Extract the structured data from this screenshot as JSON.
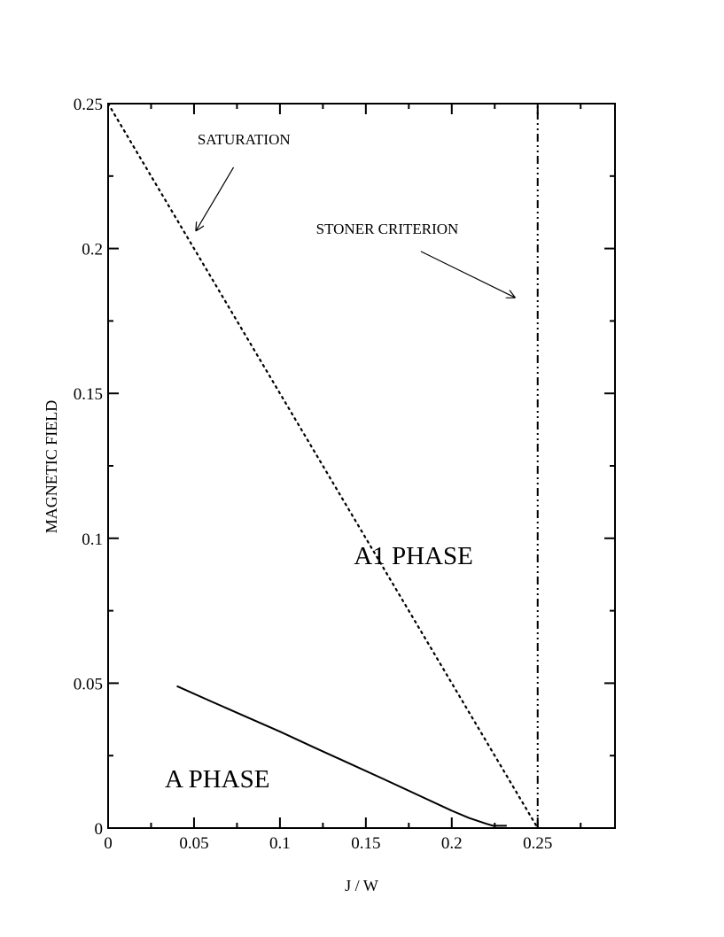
{
  "chart_data": {
    "type": "line",
    "xlabel": "J / W",
    "ylabel": "MAGNETIC FIELD",
    "xlim": [
      0,
      0.295
    ],
    "ylim": [
      0,
      0.25
    ],
    "x_ticks": [
      0,
      0.05,
      0.1,
      0.15,
      0.2,
      0.25
    ],
    "x_tick_labels": [
      "0",
      "0.05",
      "0.1",
      "0.15",
      "0.2",
      "0.25"
    ],
    "y_ticks": [
      0,
      0.05,
      0.1,
      0.15,
      0.2,
      0.25
    ],
    "y_tick_labels": [
      "0",
      "0.05",
      "0.1",
      "0.15",
      "0.2",
      "0.25"
    ],
    "grid": false,
    "series": [
      {
        "style": "dotted",
        "x": [
          0,
          0.25
        ],
        "y": [
          0.25,
          0
        ]
      },
      {
        "style": "dash-dot",
        "x": [
          0.25,
          0.25
        ],
        "y": [
          0,
          0.25
        ]
      },
      {
        "style": "solid",
        "x": [
          0.04,
          0.06,
          0.08,
          0.1,
          0.12,
          0.14,
          0.16,
          0.18,
          0.2,
          0.21,
          0.22,
          0.224,
          0.226,
          0.232
        ],
        "y": [
          0.049,
          0.0437,
          0.0385,
          0.0333,
          0.0278,
          0.0224,
          0.017,
          0.0115,
          0.006,
          0.0035,
          0.0015,
          0.0008,
          0.0008,
          0.0008
        ]
      }
    ],
    "annotations": [
      {
        "text": "SATURATION",
        "x": 0.052,
        "y": 0.236,
        "arrow_from": [
          0.073,
          0.228
        ],
        "arrow_to": [
          0.051,
          0.206
        ]
      },
      {
        "text": "STONER CRITERION",
        "x": 0.121,
        "y": 0.205,
        "arrow_from": [
          0.182,
          0.199
        ],
        "arrow_to": [
          0.237,
          0.183
        ]
      },
      {
        "text": "A1 PHASE",
        "x": 0.143,
        "y": 0.091
      },
      {
        "text": "A PHASE",
        "x": 0.033,
        "y": 0.014
      }
    ]
  }
}
